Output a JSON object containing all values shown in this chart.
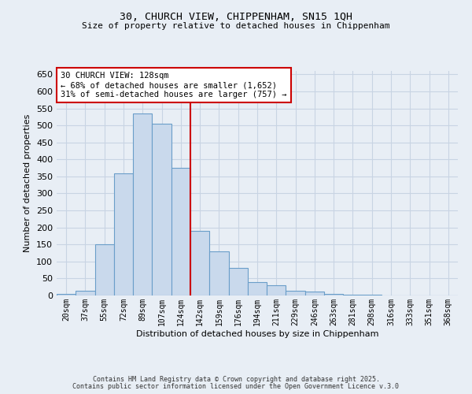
{
  "title_line1": "30, CHURCH VIEW, CHIPPENHAM, SN15 1QH",
  "title_line2": "Size of property relative to detached houses in Chippenham",
  "xlabel": "Distribution of detached houses by size in Chippenham",
  "ylabel": "Number of detached properties",
  "bar_labels": [
    "20sqm",
    "37sqm",
    "55sqm",
    "72sqm",
    "89sqm",
    "107sqm",
    "124sqm",
    "142sqm",
    "159sqm",
    "176sqm",
    "194sqm",
    "211sqm",
    "229sqm",
    "246sqm",
    "263sqm",
    "281sqm",
    "298sqm",
    "316sqm",
    "333sqm",
    "351sqm",
    "368sqm"
  ],
  "bar_values": [
    5,
    15,
    150,
    360,
    535,
    505,
    375,
    190,
    130,
    80,
    40,
    30,
    15,
    12,
    5,
    3,
    2,
    1,
    1,
    1,
    1
  ],
  "bar_color": "#c9d9ec",
  "bar_edge_color": "#6a9ec9",
  "bar_edge_width": 0.8,
  "vline_x_index": 6,
  "vline_color": "#cc0000",
  "annotation_title": "30 CHURCH VIEW: 128sqm",
  "annotation_line2": "← 68% of detached houses are smaller (1,652)",
  "annotation_line3": "31% of semi-detached houses are larger (757) →",
  "annotation_box_color": "#cc0000",
  "annotation_bg": "#ffffff",
  "ylim": [
    0,
    660
  ],
  "yticks": [
    0,
    50,
    100,
    150,
    200,
    250,
    300,
    350,
    400,
    450,
    500,
    550,
    600,
    650
  ],
  "grid_color": "#c8d4e3",
  "background_color": "#e8eef5",
  "footnote1": "Contains HM Land Registry data © Crown copyright and database right 2025.",
  "footnote2": "Contains public sector information licensed under the Open Government Licence v.3.0"
}
